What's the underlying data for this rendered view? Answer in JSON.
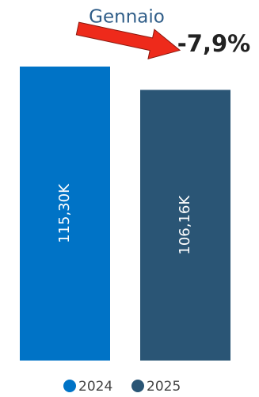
{
  "chart_data": {
    "type": "bar",
    "title": "Gennaio",
    "annotation": "-7,9%",
    "series": [
      {
        "name": "2024",
        "color": "#0073c6",
        "values": [
          115.3
        ],
        "value_labels": [
          "115,30K"
        ]
      },
      {
        "name": "2025",
        "color": "#2a5575",
        "values": [
          106.16
        ],
        "value_labels": [
          "106,16K"
        ]
      }
    ]
  }
}
